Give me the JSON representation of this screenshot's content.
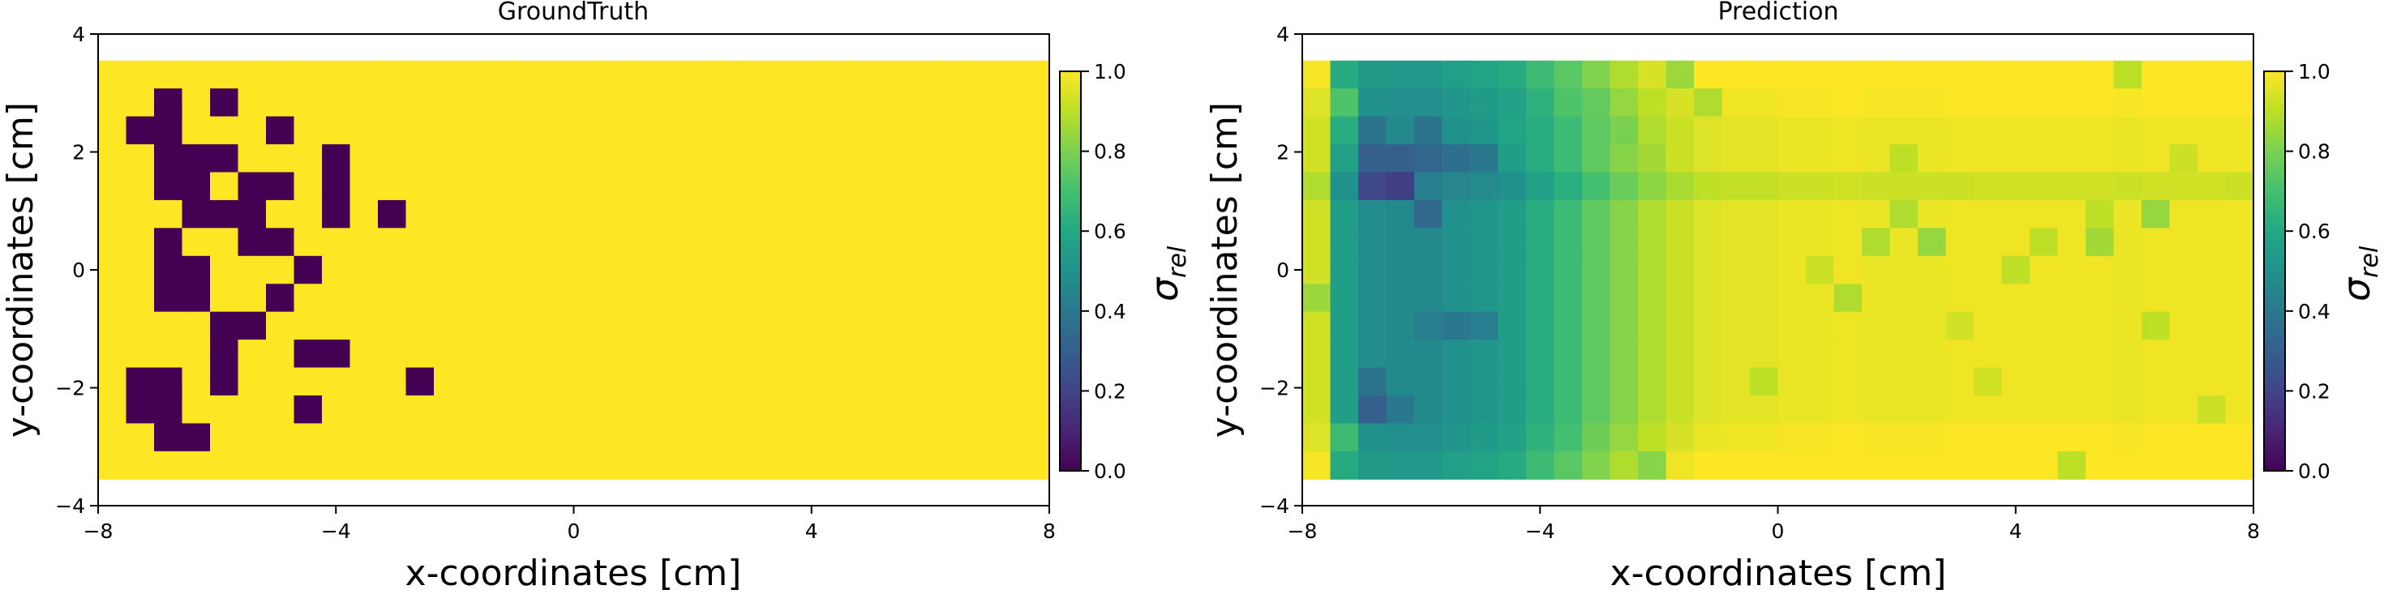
{
  "chart_data": [
    {
      "type": "heatmap",
      "title": "GroundTruth",
      "xlabel": "x-coordinates [cm]",
      "ylabel": "y-coordinates [cm]",
      "xlim": [
        -8,
        8
      ],
      "ylim": [
        -4,
        4
      ],
      "x_extent": [
        -8,
        8
      ],
      "y_extent": [
        -3.55,
        3.55
      ],
      "xticks": [
        -8,
        -4,
        0,
        4,
        8
      ],
      "yticks": [
        -4,
        -2,
        0,
        2,
        4
      ],
      "xtick_labels": [
        "−8",
        "−4",
        "0",
        "4",
        "8"
      ],
      "ytick_labels": [
        "−4",
        "−2",
        "0",
        "2",
        "4"
      ],
      "n_cols": 34,
      "n_rows": 15,
      "default_value": 1.0,
      "cells": [
        {
          "col": 2,
          "row": 1,
          "value": 0.0
        },
        {
          "col": 4,
          "row": 1,
          "value": 0.0
        },
        {
          "col": 1,
          "row": 2,
          "value": 0.0
        },
        {
          "col": 2,
          "row": 2,
          "value": 0.0
        },
        {
          "col": 6,
          "row": 2,
          "value": 0.0
        },
        {
          "col": 2,
          "row": 3,
          "value": 0.0
        },
        {
          "col": 3,
          "row": 3,
          "value": 0.0
        },
        {
          "col": 4,
          "row": 3,
          "value": 0.0
        },
        {
          "col": 8,
          "row": 3,
          "value": 0.0
        },
        {
          "col": 2,
          "row": 4,
          "value": 0.0
        },
        {
          "col": 3,
          "row": 4,
          "value": 0.0
        },
        {
          "col": 5,
          "row": 4,
          "value": 0.0
        },
        {
          "col": 6,
          "row": 4,
          "value": 0.0
        },
        {
          "col": 8,
          "row": 4,
          "value": 0.0
        },
        {
          "col": 3,
          "row": 5,
          "value": 0.0
        },
        {
          "col": 4,
          "row": 5,
          "value": 0.0
        },
        {
          "col": 5,
          "row": 5,
          "value": 0.0
        },
        {
          "col": 8,
          "row": 5,
          "value": 0.0
        },
        {
          "col": 10,
          "row": 5,
          "value": 0.0
        },
        {
          "col": 2,
          "row": 6,
          "value": 0.0
        },
        {
          "col": 5,
          "row": 6,
          "value": 0.0
        },
        {
          "col": 6,
          "row": 6,
          "value": 0.0
        },
        {
          "col": 2,
          "row": 7,
          "value": 0.0
        },
        {
          "col": 3,
          "row": 7,
          "value": 0.0
        },
        {
          "col": 7,
          "row": 7,
          "value": 0.0
        },
        {
          "col": 2,
          "row": 8,
          "value": 0.0
        },
        {
          "col": 3,
          "row": 8,
          "value": 0.0
        },
        {
          "col": 6,
          "row": 8,
          "value": 0.0
        },
        {
          "col": 4,
          "row": 9,
          "value": 0.0
        },
        {
          "col": 5,
          "row": 9,
          "value": 0.0
        },
        {
          "col": 4,
          "row": 10,
          "value": 0.0
        },
        {
          "col": 7,
          "row": 10,
          "value": 0.0
        },
        {
          "col": 8,
          "row": 10,
          "value": 0.0
        },
        {
          "col": 1,
          "row": 11,
          "value": 0.0
        },
        {
          "col": 2,
          "row": 11,
          "value": 0.0
        },
        {
          "col": 4,
          "row": 11,
          "value": 0.0
        },
        {
          "col": 11,
          "row": 11,
          "value": 0.0
        },
        {
          "col": 1,
          "row": 12,
          "value": 0.0
        },
        {
          "col": 2,
          "row": 12,
          "value": 0.0
        },
        {
          "col": 7,
          "row": 12,
          "value": 0.0
        },
        {
          "col": 2,
          "row": 13,
          "value": 0.0
        },
        {
          "col": 3,
          "row": 13,
          "value": 0.0
        }
      ],
      "colorbar": {
        "label": "σ",
        "label_subscript": "rel",
        "range": [
          0,
          1
        ],
        "ticks": [
          0.0,
          0.2,
          0.4,
          0.6,
          0.8,
          1.0
        ],
        "tick_labels": [
          "0.0",
          "0.2",
          "0.4",
          "0.6",
          "0.8",
          "1.0"
        ],
        "colormap": "viridis"
      }
    },
    {
      "type": "heatmap",
      "title": "Prediction",
      "xlabel": "x-coordinates [cm]",
      "ylabel": "y-coordinates [cm]",
      "xlim": [
        -8,
        8
      ],
      "ylim": [
        -4,
        4
      ],
      "x_extent": [
        -8,
        8
      ],
      "y_extent": [
        -3.55,
        3.55
      ],
      "xticks": [
        -8,
        -4,
        0,
        4,
        8
      ],
      "yticks": [
        -4,
        -2,
        0,
        2,
        4
      ],
      "xtick_labels": [
        "−8",
        "−4",
        "0",
        "4",
        "8"
      ],
      "ytick_labels": [
        "−4",
        "−2",
        "0",
        "2",
        "4"
      ],
      "n_cols": 34,
      "n_rows": 15,
      "default_value": 1.0,
      "column_profile": [
        0.93,
        0.55,
        0.48,
        0.47,
        0.47,
        0.5,
        0.52,
        0.55,
        0.62,
        0.68,
        0.75,
        0.82,
        0.88,
        0.92,
        0.95,
        0.96,
        0.96,
        0.97,
        0.97,
        0.98,
        0.97,
        0.97,
        0.97,
        0.98,
        0.98,
        0.98,
        0.98,
        0.98,
        0.98,
        0.97,
        0.98,
        0.98,
        0.98,
        0.98
      ],
      "row_offsets": [
        0.06,
        0.02,
        0.0,
        0.0,
        -0.05,
        0.0,
        0.0,
        0.0,
        0.0,
        0.0,
        0.0,
        0.0,
        0.0,
        0.02,
        0.06
      ],
      "cells": [
        {
          "col": 2,
          "row": 4,
          "value": 0.22
        },
        {
          "col": 3,
          "row": 4,
          "value": 0.18
        },
        {
          "col": 2,
          "row": 3,
          "value": 0.3
        },
        {
          "col": 3,
          "row": 3,
          "value": 0.3
        },
        {
          "col": 2,
          "row": 2,
          "value": 0.38
        },
        {
          "col": 4,
          "row": 2,
          "value": 0.38
        },
        {
          "col": 4,
          "row": 3,
          "value": 0.33
        },
        {
          "col": 4,
          "row": 5,
          "value": 0.34
        },
        {
          "col": 5,
          "row": 3,
          "value": 0.36
        },
        {
          "col": 6,
          "row": 3,
          "value": 0.4
        },
        {
          "col": 2,
          "row": 12,
          "value": 0.3
        },
        {
          "col": 3,
          "row": 12,
          "value": 0.4
        },
        {
          "col": 2,
          "row": 11,
          "value": 0.38
        },
        {
          "col": 4,
          "row": 9,
          "value": 0.42
        },
        {
          "col": 5,
          "row": 9,
          "value": 0.4
        },
        {
          "col": 6,
          "row": 9,
          "value": 0.42
        },
        {
          "col": 1,
          "row": 1,
          "value": 0.72
        },
        {
          "col": 1,
          "row": 2,
          "value": 0.62
        },
        {
          "col": 1,
          "row": 3,
          "value": 0.56
        },
        {
          "col": 1,
          "row": 13,
          "value": 0.68
        },
        {
          "col": 0,
          "row": 8,
          "value": 0.85
        },
        {
          "col": 7,
          "row": 2,
          "value": 0.58
        },
        {
          "col": 8,
          "row": 2,
          "value": 0.62
        },
        {
          "col": 9,
          "row": 1,
          "value": 0.72
        },
        {
          "col": 10,
          "row": 1,
          "value": 0.76
        },
        {
          "col": 11,
          "row": 2,
          "value": 0.8
        },
        {
          "col": 10,
          "row": 13,
          "value": 0.78
        },
        {
          "col": 12,
          "row": 3,
          "value": 0.86
        },
        {
          "col": 13,
          "row": 0,
          "value": 0.85
        },
        {
          "col": 14,
          "row": 1,
          "value": 0.88
        },
        {
          "col": 12,
          "row": 14,
          "value": 0.82
        },
        {
          "col": 16,
          "row": 11,
          "value": 0.9
        },
        {
          "col": 18,
          "row": 7,
          "value": 0.92
        },
        {
          "col": 19,
          "row": 8,
          "value": 0.88
        },
        {
          "col": 20,
          "row": 6,
          "value": 0.88
        },
        {
          "col": 21,
          "row": 5,
          "value": 0.88
        },
        {
          "col": 22,
          "row": 6,
          "value": 0.84
        },
        {
          "col": 21,
          "row": 3,
          "value": 0.9
        },
        {
          "col": 23,
          "row": 4,
          "value": 0.92
        },
        {
          "col": 25,
          "row": 7,
          "value": 0.9
        },
        {
          "col": 26,
          "row": 6,
          "value": 0.9
        },
        {
          "col": 27,
          "row": 14,
          "value": 0.9
        },
        {
          "col": 28,
          "row": 6,
          "value": 0.86
        },
        {
          "col": 28,
          "row": 5,
          "value": 0.9
        },
        {
          "col": 29,
          "row": 0,
          "value": 0.9
        },
        {
          "col": 30,
          "row": 5,
          "value": 0.84
        },
        {
          "col": 30,
          "row": 9,
          "value": 0.9
        },
        {
          "col": 31,
          "row": 3,
          "value": 0.92
        },
        {
          "col": 32,
          "row": 12,
          "value": 0.92
        },
        {
          "col": 33,
          "row": 4,
          "value": 0.92
        },
        {
          "col": 23,
          "row": 9,
          "value": 0.93
        },
        {
          "col": 24,
          "row": 11,
          "value": 0.93
        }
      ],
      "colorbar": {
        "label": "σ",
        "label_subscript": "rel",
        "range": [
          0,
          1
        ],
        "ticks": [
          0.0,
          0.2,
          0.4,
          0.6,
          0.8,
          1.0
        ],
        "tick_labels": [
          "0.0",
          "0.2",
          "0.4",
          "0.6",
          "0.8",
          "1.0"
        ],
        "colormap": "viridis"
      }
    }
  ]
}
